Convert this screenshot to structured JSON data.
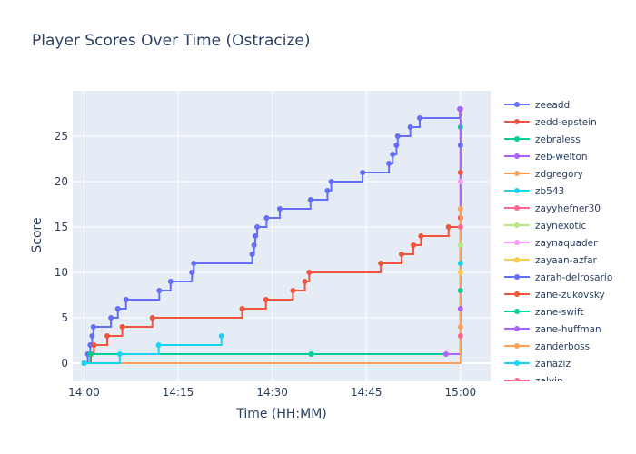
{
  "chart_data": {
    "type": "line",
    "title": "Player Scores Over Time (Ostracize)",
    "xlabel": "Time (HH:MM)",
    "ylabel": "Score",
    "x_unit": "minutes after 14:00",
    "xlim": [
      -1.8,
      64.8
    ],
    "ylim": [
      -2,
      30
    ],
    "x_ticks": [
      {
        "value": 0,
        "label": "14:00"
      },
      {
        "value": 15,
        "label": "14:15"
      },
      {
        "value": 30,
        "label": "14:30"
      },
      {
        "value": 45,
        "label": "14:45"
      },
      {
        "value": 60,
        "label": "15:00"
      }
    ],
    "y_ticks": [
      0,
      5,
      10,
      15,
      20,
      25
    ],
    "line_shape": "step (hold previous value)",
    "legend_position": "right",
    "plot_background": "#e5ecf6",
    "series": [
      {
        "name": "zeeadd",
        "color": "#636efa",
        "x": [
          0.0,
          0.6,
          1.0,
          1.3,
          1.5,
          4.3,
          5.4,
          6.7,
          12.0,
          13.8,
          17.2,
          17.5,
          26.8,
          27.1,
          27.3,
          27.6,
          29.1,
          31.2,
          36.1,
          38.8,
          39.4,
          44.4,
          48.6,
          49.2,
          49.8,
          50.0,
          52.0,
          53.5,
          59.9
        ],
        "y": [
          0,
          1,
          2,
          3,
          4,
          5,
          6,
          7,
          8,
          9,
          10,
          11,
          12,
          13,
          14,
          15,
          16,
          17,
          18,
          19,
          20,
          21,
          22,
          23,
          24,
          25,
          26,
          27,
          28
        ]
      },
      {
        "name": "zedd-epstein",
        "color": "#ef553b",
        "x": [
          0.0,
          1.1,
          1.6,
          3.7,
          6.1,
          10.9,
          25.2,
          29.0,
          33.3,
          35.2,
          35.9,
          47.3,
          50.6,
          52.5,
          53.7,
          58.1,
          60.0
        ],
        "y": [
          0,
          1,
          2,
          3,
          4,
          5,
          6,
          7,
          8,
          9,
          10,
          11,
          12,
          13,
          14,
          15,
          16
        ]
      },
      {
        "name": "zebraless",
        "color": "#00cc96",
        "x": [
          0.0,
          1.0,
          36.2,
          60.0
        ],
        "y": [
          0,
          1,
          1,
          26
        ]
      },
      {
        "name": "zeb-welton",
        "color": "#ab63fa",
        "x": [
          57.7,
          60.0
        ],
        "y": [
          1,
          28
        ]
      },
      {
        "name": "zdgregory",
        "color": "#ffa15a",
        "x": [
          0.0,
          60.0
        ],
        "y": [
          0,
          17
        ]
      },
      {
        "name": "zb543",
        "color": "#19d3f3",
        "x": [
          0.0,
          5.7,
          11.9,
          21.9
        ],
        "y": [
          0,
          1,
          2,
          3
        ]
      },
      {
        "name": "zayyhefner30",
        "color": "#ff6692",
        "x": [
          60.0
        ],
        "y": [
          3
        ]
      },
      {
        "name": "zaynexotic",
        "color": "#b6e880",
        "x": [
          60.0
        ],
        "y": [
          13
        ]
      },
      {
        "name": "zaynaquader",
        "color": "#ff97ff",
        "x": [
          60.0
        ],
        "y": [
          20
        ]
      },
      {
        "name": "zayaan-azfar",
        "color": "#fecb52",
        "x": [
          60.0
        ],
        "y": [
          10
        ]
      },
      {
        "name": "zarah-delrosario",
        "color": "#636efa",
        "x": [
          60.0
        ],
        "y": [
          24
        ]
      },
      {
        "name": "zane-zukovsky",
        "color": "#ef553b",
        "x": [
          60.0
        ],
        "y": [
          21
        ]
      },
      {
        "name": "zane-swift",
        "color": "#00cc96",
        "x": [
          60.0
        ],
        "y": [
          8
        ]
      },
      {
        "name": "zane-huffman",
        "color": "#ab63fa",
        "x": [
          60.0
        ],
        "y": [
          6
        ]
      },
      {
        "name": "zanderboss",
        "color": "#ffa15a",
        "x": [
          60.0
        ],
        "y": [
          4
        ]
      },
      {
        "name": "zanaziz",
        "color": "#19d3f3",
        "x": [
          60.0
        ],
        "y": [
          11
        ]
      },
      {
        "name": "zalvin",
        "color": "#ff6692",
        "x": [
          60.0
        ],
        "y": [
          15
        ]
      }
    ]
  }
}
